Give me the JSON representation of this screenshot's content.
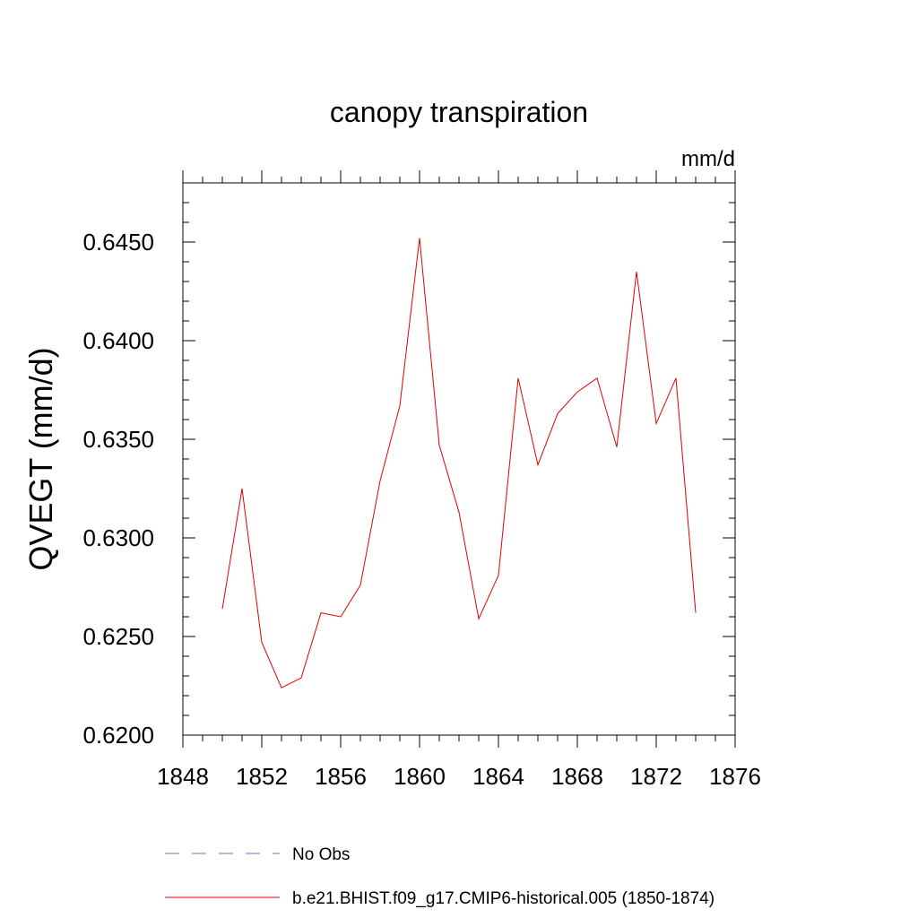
{
  "chart_data": {
    "type": "line",
    "title": "canopy transpiration",
    "units": "mm/d",
    "xlabel": "",
    "ylabel": "QVEGT  (mm/d)",
    "xlim": [
      1848,
      1876
    ],
    "ylim": [
      0.62,
      0.648
    ],
    "x_ticks": [
      1848,
      1852,
      1856,
      1860,
      1864,
      1868,
      1872,
      1876
    ],
    "y_ticks": [
      "0.6200",
      "0.6250",
      "0.6300",
      "0.6350",
      "0.6400",
      "0.6450"
    ],
    "grid": false,
    "legend_position": "bottom",
    "series": [
      {
        "name": "No Obs",
        "style": "dashed",
        "color": "#7070b8",
        "x": [],
        "values": []
      },
      {
        "name": "b.e21.BHIST.f09_g17.CMIP6-historical.005 (1850-1874)",
        "style": "solid",
        "color": "#e00000",
        "x": [
          1850,
          1851,
          1852,
          1853,
          1854,
          1855,
          1856,
          1857,
          1858,
          1859,
          1860,
          1861,
          1862,
          1863,
          1864,
          1865,
          1866,
          1867,
          1868,
          1869,
          1870,
          1871,
          1872,
          1873,
          1874
        ],
        "values": [
          0.6264,
          0.6325,
          0.6247,
          0.6224,
          0.6229,
          0.6262,
          0.626,
          0.6276,
          0.6329,
          0.6367,
          0.6452,
          0.6347,
          0.6313,
          0.6259,
          0.6281,
          0.6381,
          0.6337,
          0.6363,
          0.6374,
          0.6381,
          0.6346,
          0.6435,
          0.6358,
          0.6381,
          0.6262
        ]
      }
    ]
  }
}
